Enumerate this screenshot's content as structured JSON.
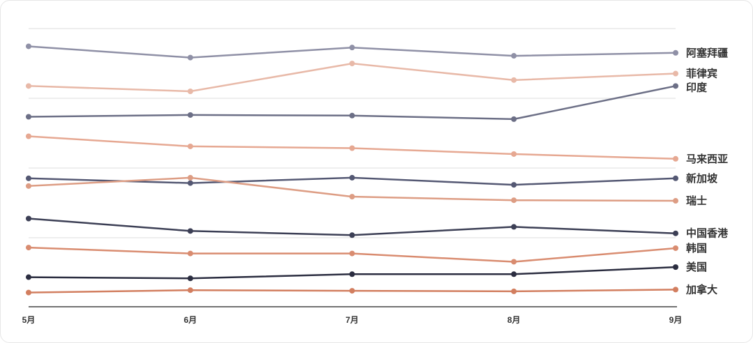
{
  "chart_data": {
    "type": "line",
    "x": [
      "5月",
      "6月",
      "7月",
      "8月",
      "9月"
    ],
    "grid": true,
    "legend": "right-end labels",
    "series": [
      {
        "name": "阿塞拜疆",
        "color": "#8f90a6",
        "values": [
          10.2,
          10.01,
          10.18,
          10.04,
          10.09
        ]
      },
      {
        "name": "菲律宾",
        "color": "#e8b9a8",
        "values": [
          9.53,
          9.44,
          9.91,
          9.63,
          9.74
        ]
      },
      {
        "name": "印度",
        "color": "#6c6f86",
        "values": [
          9.01,
          9.04,
          9.03,
          8.97,
          9.53
        ]
      },
      {
        "name": "马来西亚",
        "color": "#e6a892",
        "values": [
          8.68,
          8.51,
          8.48,
          8.38,
          8.3
        ]
      },
      {
        "name": "新加坡",
        "color": "#545873",
        "values": [
          7.97,
          7.89,
          7.98,
          7.86,
          7.97
        ]
      },
      {
        "name": "瑞士",
        "color": "#dd9d84",
        "values": [
          7.84,
          7.98,
          7.66,
          7.6,
          7.59
        ]
      },
      {
        "name": "中国香港",
        "color": "#3c3f55",
        "values": [
          7.29,
          7.08,
          7.01,
          7.15,
          7.04
        ]
      },
      {
        "name": "韩国",
        "color": "#d98c70",
        "values": [
          6.8,
          6.7,
          6.7,
          6.56,
          6.79
        ]
      },
      {
        "name": "美国",
        "color": "#2b2d40",
        "values": [
          6.3,
          6.28,
          6.35,
          6.35,
          6.47
        ]
      },
      {
        "name": "加拿大",
        "color": "#d27e5f",
        "values": [
          6.04,
          6.08,
          6.07,
          6.06,
          6.09
        ]
      }
    ]
  }
}
